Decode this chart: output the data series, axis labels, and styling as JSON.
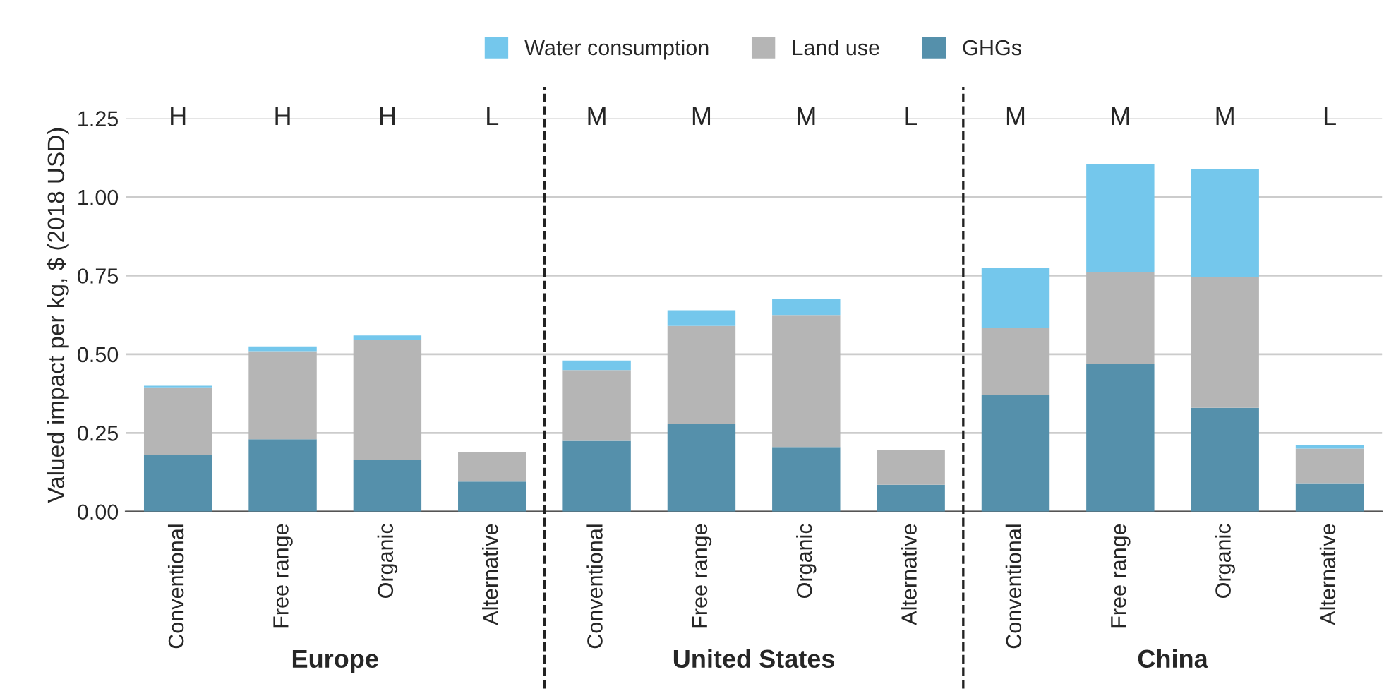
{
  "chart_data": {
    "type": "bar",
    "stacked": true,
    "ylabel": "Valued impact per kg, $ (2018 USD)",
    "categories": [
      "Conventional",
      "Free range",
      "Organic",
      "Alternative",
      "Conventional",
      "Free range",
      "Organic",
      "Alternative",
      "Conventional",
      "Free range",
      "Organic",
      "Alternative"
    ],
    "series": [
      {
        "name": "GHGs",
        "color": "#5590ab",
        "values": [
          0.18,
          0.23,
          0.165,
          0.095,
          0.225,
          0.28,
          0.205,
          0.085,
          0.37,
          0.47,
          0.33,
          0.09
        ]
      },
      {
        "name": "Land use",
        "color": "#b5b5b5",
        "values": [
          0.215,
          0.28,
          0.38,
          0.095,
          0.225,
          0.31,
          0.42,
          0.11,
          0.215,
          0.29,
          0.415,
          0.11
        ]
      },
      {
        "name": "Water consumption",
        "color": "#74c7ec",
        "values": [
          0.005,
          0.015,
          0.015,
          null,
          0.03,
          0.05,
          0.05,
          null,
          0.19,
          0.345,
          0.345,
          0.01
        ]
      }
    ],
    "ylim": [
      0,
      1.25
    ],
    "yticks": [
      {
        "value": 0,
        "label": "0.00"
      },
      {
        "value": 0.25,
        "label": "0.25"
      },
      {
        "value": 0.5,
        "label": "0.50"
      },
      {
        "value": 0.75,
        "label": "0.75"
      },
      {
        "value": 1,
        "label": "1.00"
      },
      {
        "value": 1.25,
        "label": "1.25"
      }
    ],
    "grid": "y",
    "legend": "top",
    "annotations": [
      "H",
      "H",
      "H",
      "L",
      "M",
      "M",
      "M",
      "L",
      "M",
      "M",
      "M",
      "L",
      "Europe",
      "United States",
      "China"
    ]
  }
}
